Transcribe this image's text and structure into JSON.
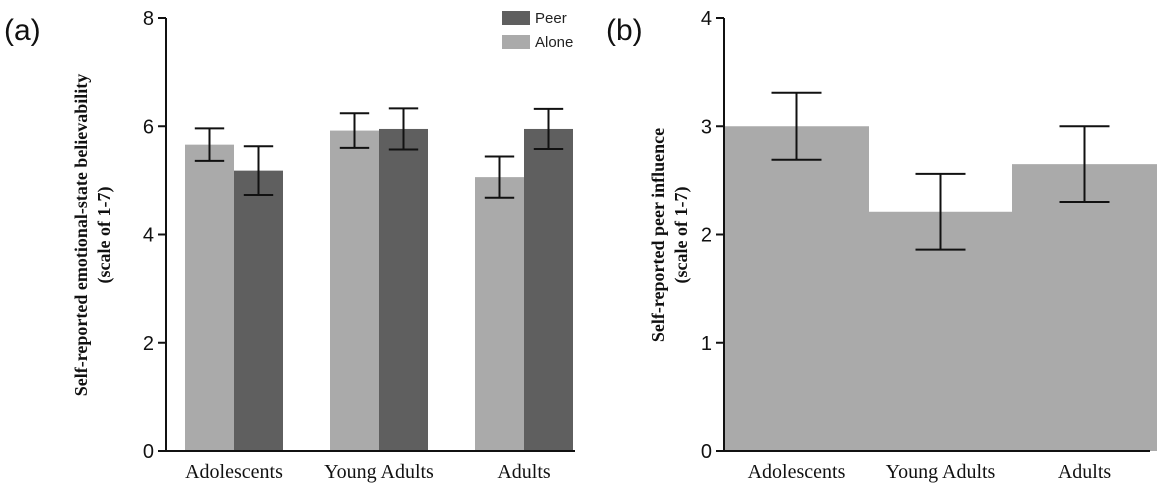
{
  "chart_data": [
    {
      "type": "bar",
      "panel_label": "(a)",
      "categories": [
        "Adolescents",
        "Young Adults",
        "Adults"
      ],
      "series": [
        {
          "name": "Alone",
          "color": "#aaaaaa",
          "values": [
            5.66,
            5.92,
            5.06
          ],
          "error": [
            0.3,
            0.32,
            0.38
          ]
        },
        {
          "name": "Peer",
          "color": "#5f5f5f",
          "values": [
            5.18,
            5.95,
            5.95
          ],
          "error": [
            0.45,
            0.38,
            0.37
          ]
        }
      ],
      "legend_order": [
        "Peer",
        "Alone"
      ],
      "legend_position": "top-right",
      "ylabel_line1": "Self-reported emotional-state believability",
      "ylabel_line2": "(scale of 1-7)",
      "ylim": [
        0,
        8
      ],
      "yticks": [
        0,
        2,
        4,
        6,
        8
      ],
      "grid": false
    },
    {
      "type": "bar",
      "panel_label": "(b)",
      "categories": [
        "Adolescents",
        "Young Adults",
        "Adults"
      ],
      "series": [
        {
          "name": "",
          "color": "#aaaaaa",
          "values": [
            3.0,
            2.21,
            2.65
          ],
          "error": [
            0.31,
            0.35,
            0.35
          ]
        }
      ],
      "ylabel_line1": "Self-reported peer influence",
      "ylabel_line2": "(scale of 1-7)",
      "ylim": [
        0,
        4
      ],
      "yticks": [
        0,
        1,
        2,
        3,
        4
      ],
      "grid": false
    }
  ]
}
